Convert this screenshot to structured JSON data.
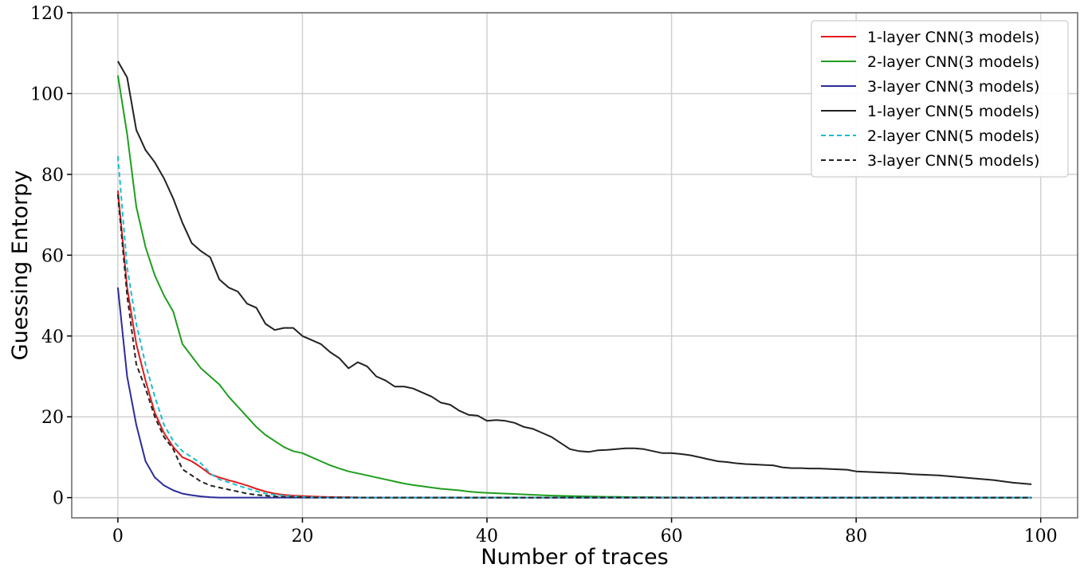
{
  "chart_data": {
    "type": "line",
    "title": "",
    "xlabel": "Number of traces",
    "ylabel": "Guessing Entorpy",
    "xlim": [
      -5,
      104
    ],
    "ylim": [
      -5,
      120
    ],
    "xticks": [
      0,
      20,
      40,
      60,
      80,
      100
    ],
    "yticks": [
      0,
      20,
      40,
      60,
      80,
      100,
      120
    ],
    "grid": true,
    "legend_position": "top-right",
    "x": [
      0,
      1,
      2,
      3,
      4,
      5,
      6,
      7,
      8,
      9,
      10,
      11,
      12,
      13,
      14,
      15,
      16,
      17,
      18,
      19,
      20,
      21,
      22,
      23,
      24,
      25,
      26,
      27,
      28,
      29,
      30,
      31,
      32,
      33,
      34,
      35,
      36,
      37,
      38,
      39,
      40,
      41,
      42,
      43,
      44,
      45,
      46,
      47,
      48,
      49,
      50,
      51,
      52,
      53,
      54,
      55,
      56,
      57,
      58,
      59,
      60,
      61,
      62,
      63,
      64,
      65,
      66,
      67,
      68,
      69,
      70,
      71,
      72,
      73,
      74,
      75,
      76,
      77,
      78,
      79,
      80,
      81,
      82,
      83,
      84,
      85,
      86,
      87,
      88,
      89,
      90,
      91,
      92,
      93,
      94,
      95,
      96,
      97,
      98,
      99
    ],
    "series": [
      {
        "name": "1-layer CNN(3 models)",
        "color": "#e41a1c",
        "dash": "solid",
        "values": [
          76,
          52,
          38,
          29,
          21,
          16,
          12.5,
          10,
          9,
          7.5,
          5.8,
          5,
          4.3,
          3.7,
          3,
          2.2,
          1.5,
          1,
          0.7,
          0.5,
          0.4,
          0.3,
          0.2,
          0.15,
          0.1,
          0.1,
          0.05,
          0,
          0,
          0,
          0,
          0,
          0,
          0,
          0,
          0,
          0,
          0,
          0,
          0,
          0,
          0,
          0,
          0,
          0,
          0,
          0,
          0,
          0,
          0,
          0,
          0,
          0,
          0,
          0,
          0,
          0,
          0,
          0,
          0,
          0,
          0,
          0,
          0,
          0,
          0,
          0,
          0,
          0,
          0,
          0,
          0,
          0,
          0,
          0,
          0,
          0,
          0,
          0,
          0,
          0,
          0,
          0,
          0,
          0,
          0,
          0,
          0,
          0,
          0,
          0,
          0,
          0,
          0,
          0,
          0,
          0,
          0,
          0,
          0
        ]
      },
      {
        "name": "2-layer CNN(3 models)",
        "color": "#1f9e1f",
        "dash": "solid",
        "values": [
          104.5,
          90,
          72,
          62,
          55,
          50,
          46,
          38,
          35,
          32,
          30,
          28,
          25,
          22.5,
          20,
          17.5,
          15.5,
          14,
          12.5,
          11.5,
          11,
          10,
          9,
          8,
          7.2,
          6.5,
          6,
          5.5,
          5,
          4.5,
          4,
          3.5,
          3.1,
          2.8,
          2.5,
          2.2,
          2,
          1.8,
          1.5,
          1.3,
          1.2,
          1.1,
          1,
          0.9,
          0.8,
          0.7,
          0.6,
          0.5,
          0.45,
          0.4,
          0.35,
          0.3,
          0.25,
          0.2,
          0.2,
          0.15,
          0.1,
          0.1,
          0.1,
          0.05,
          0.05,
          0.05,
          0,
          0,
          0,
          0,
          0,
          0,
          0,
          0,
          0,
          0,
          0,
          0,
          0,
          0,
          0,
          0,
          0,
          0,
          0,
          0,
          0,
          0,
          0,
          0,
          0,
          0,
          0,
          0,
          0,
          0,
          0,
          0,
          0,
          0,
          0,
          0,
          0,
          0
        ]
      },
      {
        "name": "3-layer CNN(3 models)",
        "color": "#2c2c9a",
        "dash": "solid",
        "values": [
          52,
          30,
          18,
          9,
          5,
          3,
          1.8,
          1,
          0.6,
          0.3,
          0.1,
          0,
          0,
          0,
          0,
          0,
          0,
          0,
          0,
          0,
          0,
          0,
          0,
          0,
          0,
          0,
          0,
          0,
          0,
          0,
          0,
          0,
          0,
          0,
          0,
          0,
          0,
          0,
          0,
          0,
          0,
          0,
          0,
          0,
          0,
          0,
          0,
          0,
          0,
          0,
          0,
          0,
          0,
          0,
          0,
          0,
          0,
          0,
          0,
          0,
          0,
          0,
          0,
          0,
          0,
          0,
          0,
          0,
          0,
          0,
          0,
          0,
          0,
          0,
          0,
          0,
          0,
          0,
          0,
          0,
          0,
          0,
          0,
          0,
          0,
          0,
          0,
          0,
          0,
          0,
          0,
          0,
          0,
          0,
          0,
          0,
          0,
          0,
          0,
          0
        ]
      },
      {
        "name": "1-layer CNN(5 models)",
        "color": "#222222",
        "dash": "solid",
        "values": [
          108,
          104,
          91,
          86,
          83,
          79,
          74,
          68,
          63,
          61,
          59.5,
          54,
          52,
          51,
          48,
          47,
          43,
          41.5,
          42,
          42,
          40,
          39,
          38,
          36,
          34.5,
          32,
          33.5,
          32.5,
          30,
          29,
          27.5,
          27.5,
          27,
          26,
          25,
          23.5,
          23,
          21.5,
          20.5,
          20.3,
          19,
          19.2,
          19,
          18.5,
          17.5,
          17,
          16,
          15,
          13.5,
          12,
          11.5,
          11.3,
          11.7,
          11.8,
          12,
          12.2,
          12.2,
          12,
          11.5,
          11,
          11,
          10.8,
          10.5,
          10,
          9.5,
          9,
          8.8,
          8.5,
          8.3,
          8.2,
          8.1,
          8,
          7.5,
          7.3,
          7.3,
          7.2,
          7.2,
          7.1,
          7,
          6.9,
          6.5,
          6.4,
          6.3,
          6.2,
          6.1,
          6,
          5.8,
          5.7,
          5.6,
          5.5,
          5.3,
          5.1,
          4.9,
          4.7,
          4.5,
          4.3,
          4,
          3.7,
          3.5,
          3.3
        ]
      },
      {
        "name": "2-layer CNN(5 models)",
        "color": "#17becf",
        "dash": "dashed",
        "values": [
          84.5,
          57,
          43,
          33,
          25,
          18,
          14,
          11.5,
          10,
          8.5,
          6,
          4.5,
          3.8,
          3,
          2.3,
          1.6,
          1,
          0.7,
          0.5,
          0.3,
          0.2,
          0.1,
          0.05,
          0,
          0,
          0,
          0,
          0,
          0,
          0,
          0,
          0,
          0,
          0,
          0,
          0,
          0,
          0,
          0,
          0,
          0,
          0,
          0,
          0,
          0,
          0,
          0,
          0,
          0,
          0,
          0,
          0,
          0,
          0,
          0,
          0,
          0,
          0,
          0,
          0,
          0,
          0,
          0,
          0,
          0,
          0,
          0,
          0,
          0,
          0,
          0,
          0,
          0,
          0,
          0,
          0,
          0,
          0,
          0,
          0,
          0,
          0,
          0,
          0,
          0,
          0,
          0,
          0,
          0,
          0,
          0,
          0,
          0,
          0,
          0,
          0,
          0,
          0,
          0,
          0
        ]
      },
      {
        "name": "3-layer CNN(5 models)",
        "color": "#222222",
        "dash": "dashed",
        "values": [
          75,
          50,
          33,
          27,
          20,
          15,
          12,
          7,
          5.5,
          4,
          3,
          2.5,
          2,
          1.5,
          1,
          0.7,
          0.5,
          0.3,
          0.2,
          0.1,
          0.05,
          0,
          0,
          0,
          0,
          0,
          0,
          0,
          0,
          0,
          0,
          0,
          0,
          0,
          0,
          0,
          0,
          0,
          0,
          0,
          0,
          0,
          0,
          0,
          0,
          0,
          0,
          0,
          0,
          0,
          0,
          0,
          0,
          0,
          0,
          0,
          0,
          0,
          0,
          0,
          0,
          0,
          0,
          0,
          0,
          0,
          0,
          0,
          0,
          0,
          0,
          0,
          0,
          0,
          0,
          0,
          0,
          0,
          0,
          0,
          0,
          0,
          0,
          0,
          0,
          0,
          0,
          0,
          0,
          0,
          0,
          0,
          0,
          0,
          0,
          0,
          0,
          0,
          0,
          0
        ]
      }
    ]
  }
}
